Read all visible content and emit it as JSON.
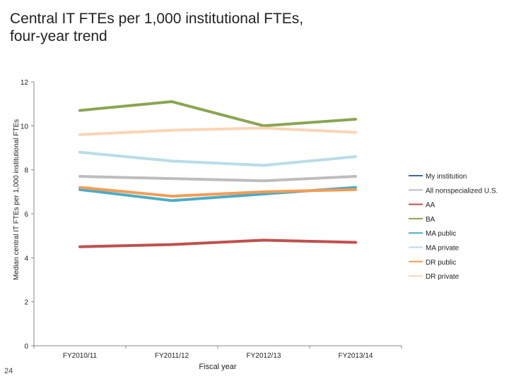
{
  "title_line1": "Central IT FTEs per 1,000 institutional FTEs,",
  "title_line2": "four-year trend",
  "page_number": "24",
  "chart_data": {
    "type": "line",
    "x": [
      "FY2010/11",
      "FY2011/12",
      "FY2012/13",
      "FY2013/14"
    ],
    "xlabel": "Fiscal year",
    "ylabel": "Median central IT FTEs per 1,000 institutional FTEs",
    "ylim": [
      0,
      12
    ],
    "yticks": [
      0,
      2,
      4,
      6,
      8,
      10,
      12
    ],
    "grid": false,
    "legend_position": "right",
    "series": [
      {
        "name": "My institution",
        "color": "#3a6c9c",
        "values": [
          null,
          null,
          null,
          null
        ]
      },
      {
        "name": "All nonspecialized U.S.",
        "color": "#bdbdbd",
        "values": [
          7.7,
          7.6,
          7.5,
          7.7
        ]
      },
      {
        "name": "AA",
        "color": "#c0504d",
        "values": [
          4.5,
          4.6,
          4.8,
          4.7
        ]
      },
      {
        "name": "BA",
        "color": "#8aa551",
        "values": [
          10.7,
          11.1,
          10.0,
          10.3
        ]
      },
      {
        "name": "MA public",
        "color": "#4bacc6",
        "values": [
          7.1,
          6.6,
          6.9,
          7.2
        ]
      },
      {
        "name": "MA private",
        "color": "#b7dde8",
        "values": [
          8.8,
          8.4,
          8.2,
          8.6
        ]
      },
      {
        "name": "DR public",
        "color": "#f29d56",
        "values": [
          7.2,
          6.8,
          7.0,
          7.1
        ]
      },
      {
        "name": "DR private",
        "color": "#fbd5b5",
        "values": [
          9.6,
          9.8,
          9.9,
          9.7
        ]
      }
    ]
  }
}
